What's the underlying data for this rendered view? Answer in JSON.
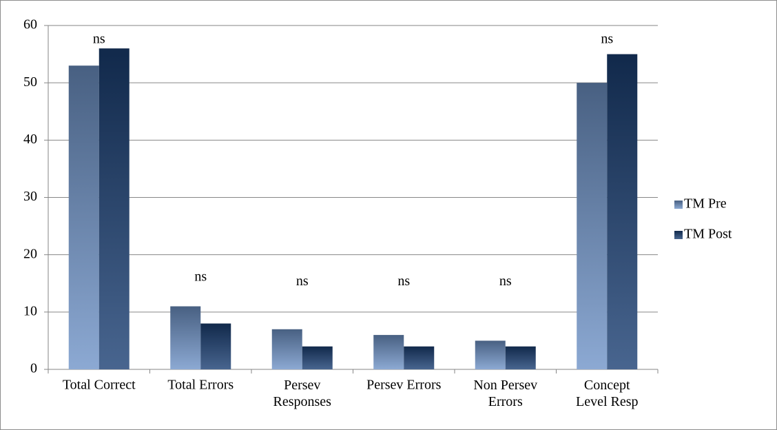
{
  "chart_data": {
    "type": "bar",
    "categories": [
      "Total Correct",
      "Total Errors",
      "Persev Responses",
      "Persev Errors",
      "Non Persev Errors",
      "Concept Level Resp"
    ],
    "series": [
      {
        "name": "TM Pre",
        "color": "#6f93c8",
        "values": [
          53,
          11,
          7,
          6,
          5,
          50
        ]
      },
      {
        "name": "TM Post",
        "color": "#1a3f73",
        "values": [
          56,
          8,
          4,
          4,
          4,
          55
        ]
      }
    ],
    "annotations": [
      {
        "text": "ns",
        "x": "Total Correct",
        "y": 57.5
      },
      {
        "text": "ns",
        "x": "Total Errors",
        "y": 16
      },
      {
        "text": "ns",
        "x": "Persev Responses",
        "y": 15.2
      },
      {
        "text": "ns",
        "x": "Persev Errors",
        "y": 15.2
      },
      {
        "text": "ns",
        "x": "Non Persev Errors",
        "y": 15.2
      },
      {
        "text": "ns",
        "x": "Concept Level Resp",
        "y": 57.5
      }
    ],
    "ylim": [
      0,
      60
    ],
    "yticks": [
      0,
      10,
      20,
      30,
      40,
      50,
      60
    ],
    "grid": true,
    "legend": "right"
  }
}
